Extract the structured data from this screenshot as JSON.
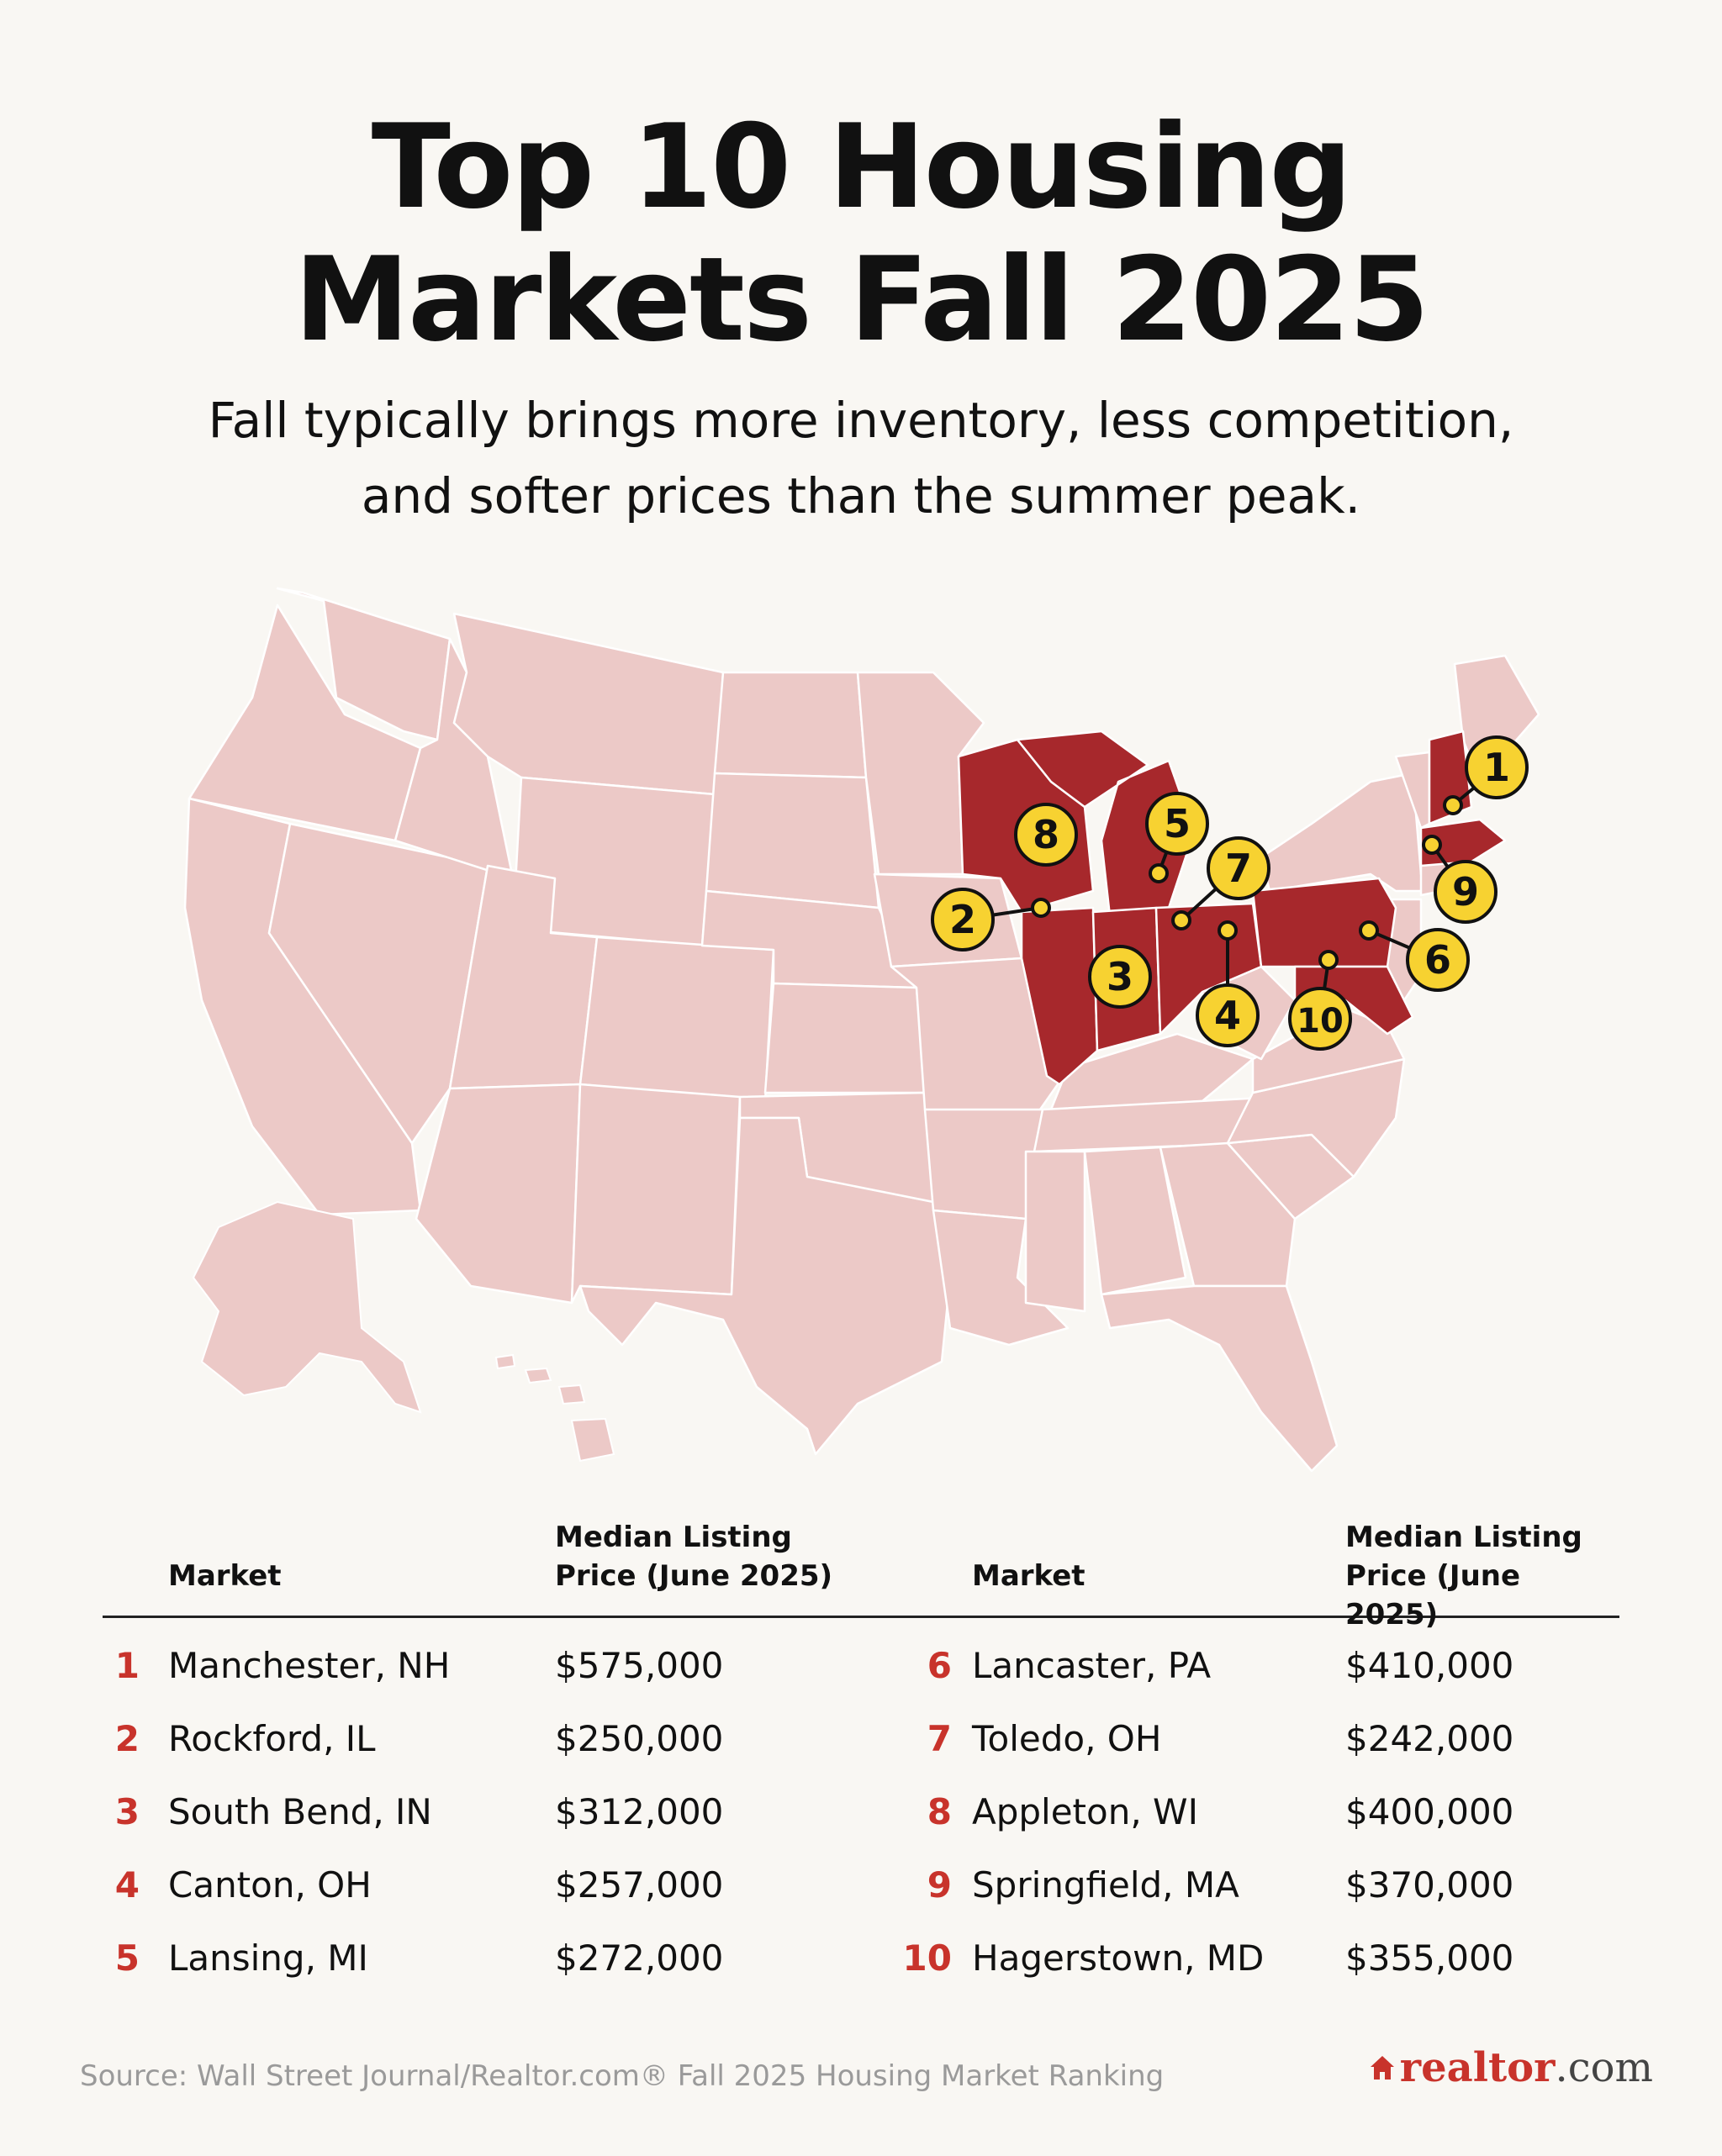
{
  "title_line1": "Top 10 Housing",
  "title_line2": "Markets Fall 2025",
  "subtitle_line1": "Fall typically brings more inventory, less competition,",
  "subtitle_line2": "and softer prices than the summer peak.",
  "colors": {
    "background": "#f9f7f3",
    "map_fill": "#ecc9c7",
    "highlight_fill": "#a7282c",
    "marker_fill": "#f7d231",
    "rank_color": "#c8332b"
  },
  "map": {
    "markers": [
      {
        "rank": "1",
        "city": "Manchester, NH"
      },
      {
        "rank": "2",
        "city": "Rockford, IL"
      },
      {
        "rank": "3",
        "city": "South Bend, IN"
      },
      {
        "rank": "4",
        "city": "Canton, OH"
      },
      {
        "rank": "5",
        "city": "Lansing, MI"
      },
      {
        "rank": "6",
        "city": "Lancaster, PA"
      },
      {
        "rank": "7",
        "city": "Toledo, OH"
      },
      {
        "rank": "8",
        "city": "Appleton, WI"
      },
      {
        "rank": "9",
        "city": "Springfield, MA"
      },
      {
        "rank": "10",
        "city": "Hagerstown, MD"
      }
    ]
  },
  "table": {
    "headers": {
      "market_left": "Market",
      "price_left_1": "Median Listing",
      "price_left_2": "Price (June 2025)",
      "market_right": "Market",
      "price_right_1": "Median Listing",
      "price_right_2": "Price (June 2025)"
    },
    "left": [
      {
        "rank": "1",
        "market": "Manchester, NH",
        "price": "$575,000"
      },
      {
        "rank": "2",
        "market": "Rockford, IL",
        "price": "$250,000"
      },
      {
        "rank": "3",
        "market": "South Bend, IN",
        "price": "$312,000"
      },
      {
        "rank": "4",
        "market": "Canton, OH",
        "price": "$257,000"
      },
      {
        "rank": "5",
        "market": "Lansing, MI",
        "price": "$272,000"
      }
    ],
    "right": [
      {
        "rank": "6",
        "market": "Lancaster, PA",
        "price": "$410,000"
      },
      {
        "rank": "7",
        "market": "Toledo, OH",
        "price": "$242,000"
      },
      {
        "rank": "8",
        "market": "Appleton, WI",
        "price": "$400,000"
      },
      {
        "rank": "9",
        "market": "Springfield, MA",
        "price": "$370,000"
      },
      {
        "rank": "10",
        "market": "Hagerstown, MD",
        "price": "$355,000"
      }
    ]
  },
  "source": "Source: Wall Street Journal/Realtor.com® Fall 2025 Housing Market Ranking",
  "logo": {
    "word": "realtor",
    "suffix": ".com",
    "icon": "house-icon"
  }
}
